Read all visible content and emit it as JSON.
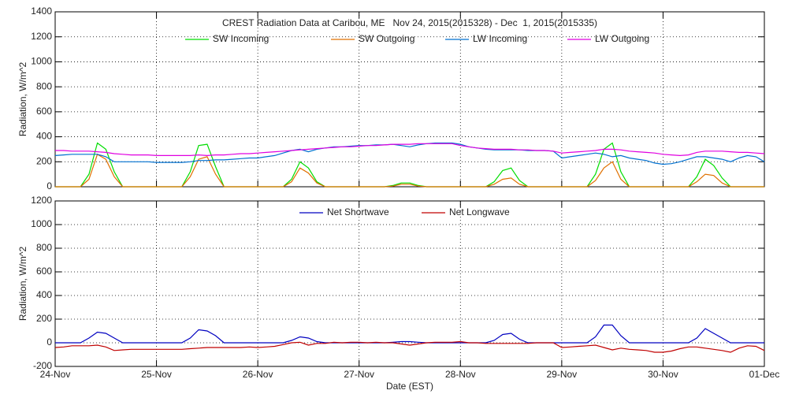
{
  "chart_data": [
    {
      "type": "line",
      "title": "CREST Radiation Data at Caribou, ME   Nov 24, 2015(2015328) - Dec  1, 2015(2015335)",
      "y_label": "Radiation, W/m^2",
      "grid": true,
      "x": [
        0,
        2,
        4,
        6,
        8,
        10,
        12,
        14,
        16,
        18,
        20,
        22,
        24,
        26,
        28,
        30,
        32,
        34,
        36,
        38,
        40,
        42,
        44,
        46,
        48,
        50,
        52,
        54,
        56,
        58,
        60,
        62,
        64,
        66,
        68,
        70,
        72,
        74,
        76,
        78,
        80,
        82,
        84,
        86,
        88,
        90,
        92,
        94,
        96,
        98,
        100,
        102,
        104,
        106,
        108,
        110,
        112,
        114,
        116,
        118,
        120,
        122,
        124,
        126,
        128,
        130,
        132,
        134,
        136,
        138,
        140,
        142,
        144,
        146,
        148,
        150,
        152,
        154,
        156,
        158,
        160,
        162,
        164,
        166,
        168
      ],
      "xlim": [
        0,
        168
      ],
      "xticks": [
        0,
        24,
        48,
        72,
        96,
        120,
        144,
        168
      ],
      "ylim": [
        0,
        1400
      ],
      "yticks": [
        0,
        200,
        400,
        600,
        800,
        1000,
        1200,
        1400
      ],
      "series": [
        {
          "name": "SW Incoming",
          "color": "#00dd00",
          "values": [
            0,
            0,
            0,
            0,
            100,
            350,
            300,
            120,
            0,
            0,
            0,
            0,
            0,
            0,
            0,
            0,
            120,
            330,
            340,
            160,
            0,
            0,
            0,
            0,
            0,
            0,
            0,
            0,
            60,
            200,
            150,
            40,
            0,
            0,
            0,
            0,
            0,
            0,
            0,
            0,
            10,
            30,
            30,
            10,
            0,
            0,
            0,
            0,
            0,
            0,
            0,
            0,
            40,
            130,
            150,
            50,
            0,
            0,
            0,
            0,
            0,
            0,
            0,
            0,
            100,
            300,
            350,
            120,
            0,
            0,
            0,
            0,
            0,
            0,
            0,
            0,
            80,
            220,
            170,
            70,
            0,
            0,
            0,
            0,
            0
          ]
        },
        {
          "name": "SW Outgoing",
          "color": "#e07000",
          "values": [
            0,
            0,
            0,
            0,
            60,
            260,
            220,
            80,
            0,
            0,
            0,
            0,
            0,
            0,
            0,
            0,
            80,
            220,
            240,
            100,
            0,
            0,
            0,
            0,
            0,
            0,
            0,
            0,
            40,
            150,
            110,
            30,
            0,
            0,
            0,
            0,
            0,
            0,
            0,
            0,
            5,
            20,
            20,
            5,
            0,
            0,
            0,
            0,
            0,
            0,
            0,
            0,
            20,
            60,
            70,
            20,
            0,
            0,
            0,
            0,
            0,
            0,
            0,
            0,
            50,
            150,
            200,
            60,
            0,
            0,
            0,
            0,
            0,
            0,
            0,
            0,
            40,
            100,
            90,
            30,
            0,
            0,
            0,
            0,
            0
          ]
        },
        {
          "name": "LW Incoming",
          "color": "#0070d0",
          "values": [
            250,
            255,
            260,
            260,
            260,
            260,
            240,
            200,
            200,
            200,
            200,
            200,
            195,
            195,
            195,
            195,
            200,
            210,
            210,
            215,
            215,
            220,
            225,
            230,
            230,
            240,
            250,
            270,
            290,
            300,
            280,
            300,
            310,
            320,
            320,
            325,
            330,
            330,
            335,
            335,
            340,
            330,
            320,
            335,
            345,
            350,
            350,
            350,
            340,
            320,
            310,
            300,
            295,
            295,
            295,
            295,
            290,
            290,
            290,
            285,
            230,
            240,
            250,
            260,
            270,
            260,
            240,
            250,
            230,
            220,
            210,
            190,
            180,
            185,
            200,
            220,
            240,
            240,
            230,
            220,
            200,
            230,
            250,
            240,
            200
          ]
        },
        {
          "name": "LW Outgoing",
          "color": "#e000e0",
          "values": [
            290,
            290,
            285,
            285,
            285,
            280,
            275,
            265,
            260,
            255,
            255,
            255,
            250,
            250,
            250,
            250,
            250,
            255,
            250,
            255,
            255,
            260,
            265,
            265,
            270,
            275,
            280,
            285,
            290,
            295,
            300,
            305,
            310,
            315,
            320,
            320,
            325,
            330,
            330,
            335,
            340,
            340,
            340,
            345,
            345,
            345,
            345,
            345,
            330,
            320,
            310,
            305,
            300,
            300,
            300,
            295,
            295,
            290,
            290,
            285,
            270,
            275,
            280,
            285,
            290,
            300,
            300,
            295,
            285,
            280,
            275,
            270,
            260,
            255,
            250,
            255,
            275,
            285,
            285,
            285,
            280,
            275,
            275,
            270,
            265
          ]
        }
      ]
    },
    {
      "type": "line",
      "y_label": "Radiation, W/m^2",
      "x_label": "Date (EST)",
      "grid": true,
      "x": [
        0,
        2,
        4,
        6,
        8,
        10,
        12,
        14,
        16,
        18,
        20,
        22,
        24,
        26,
        28,
        30,
        32,
        34,
        36,
        38,
        40,
        42,
        44,
        46,
        48,
        50,
        52,
        54,
        56,
        58,
        60,
        62,
        64,
        66,
        68,
        70,
        72,
        74,
        76,
        78,
        80,
        82,
        84,
        86,
        88,
        90,
        92,
        94,
        96,
        98,
        100,
        102,
        104,
        106,
        108,
        110,
        112,
        114,
        116,
        118,
        120,
        122,
        124,
        126,
        128,
        130,
        132,
        134,
        136,
        138,
        140,
        142,
        144,
        146,
        148,
        150,
        152,
        154,
        156,
        158,
        160,
        162,
        164,
        166,
        168
      ],
      "xlim": [
        0,
        168
      ],
      "xticks": [
        {
          "value": 0,
          "label": "24-Nov"
        },
        {
          "value": 24,
          "label": "25-Nov"
        },
        {
          "value": 48,
          "label": "26-Nov"
        },
        {
          "value": 72,
          "label": "27-Nov"
        },
        {
          "value": 96,
          "label": "28-Nov"
        },
        {
          "value": 120,
          "label": "29-Nov"
        },
        {
          "value": 144,
          "label": "30-Nov"
        },
        {
          "value": 168,
          "label": "01-Dec"
        }
      ],
      "ylim": [
        -200,
        1200
      ],
      "yticks": [
        -200,
        0,
        200,
        400,
        600,
        800,
        1000,
        1200
      ],
      "series": [
        {
          "name": "Net Shortwave",
          "color": "#0000c0",
          "values": [
            0,
            0,
            0,
            0,
            40,
            90,
            80,
            40,
            0,
            0,
            0,
            0,
            0,
            0,
            0,
            0,
            40,
            110,
            100,
            60,
            0,
            0,
            0,
            0,
            0,
            0,
            0,
            0,
            20,
            50,
            40,
            10,
            0,
            0,
            0,
            0,
            0,
            0,
            0,
            0,
            5,
            10,
            10,
            5,
            0,
            0,
            0,
            0,
            0,
            0,
            0,
            0,
            20,
            70,
            80,
            30,
            0,
            0,
            0,
            0,
            0,
            0,
            0,
            0,
            50,
            150,
            150,
            60,
            0,
            0,
            0,
            0,
            0,
            0,
            0,
            0,
            40,
            120,
            80,
            40,
            0,
            0,
            0,
            0,
            0
          ]
        },
        {
          "name": "Net Longwave",
          "color": "#c00000",
          "values": [
            -40,
            -35,
            -25,
            -25,
            -25,
            -20,
            -35,
            -65,
            -60,
            -55,
            -55,
            -55,
            -55,
            -55,
            -55,
            -55,
            -50,
            -45,
            -40,
            -40,
            -40,
            -40,
            -40,
            -35,
            -40,
            -35,
            -30,
            -15,
            0,
            5,
            -20,
            -5,
            -5,
            5,
            0,
            5,
            5,
            0,
            5,
            0,
            0,
            -10,
            -20,
            -10,
            0,
            5,
            5,
            5,
            10,
            0,
            0,
            -5,
            -5,
            -5,
            -5,
            -5,
            -5,
            0,
            0,
            0,
            -40,
            -35,
            -30,
            -25,
            -20,
            -40,
            -60,
            -45,
            -55,
            -60,
            -65,
            -80,
            -80,
            -70,
            -50,
            -35,
            -35,
            -45,
            -55,
            -65,
            -80,
            -45,
            -25,
            -30,
            -65
          ]
        }
      ]
    }
  ]
}
